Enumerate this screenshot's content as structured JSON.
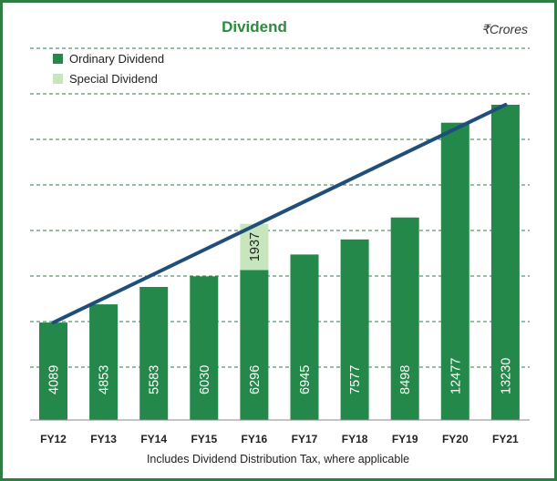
{
  "chart_data": {
    "type": "bar",
    "title": "Dividend",
    "unit_label": "₹Crores",
    "footnote": "Includes Dividend Distribution Tax, where applicable",
    "categories": [
      "FY12",
      "FY13",
      "FY14",
      "FY15",
      "FY16",
      "FY17",
      "FY18",
      "FY19",
      "FY20",
      "FY21"
    ],
    "series": [
      {
        "name": "Ordinary Dividend",
        "values": [
          4089,
          4853,
          5583,
          6030,
          6296,
          6945,
          7577,
          8498,
          12477,
          13230
        ],
        "color": "#23884a"
      },
      {
        "name": "Special Dividend",
        "values": [
          0,
          0,
          0,
          0,
          1937,
          0,
          0,
          0,
          0,
          0
        ],
        "color": "#c7e6be"
      }
    ],
    "stacked": true,
    "trend_line": {
      "color": "#1f4e79",
      "from_category": "FY12",
      "to_category": "FY21"
    },
    "ylim": [
      0,
      14500
    ],
    "grid": "dashed-horizontal",
    "legend_position": "top-left",
    "value_label_color": "#ffffff",
    "special_label_color": "#222222",
    "title_color": "#2e8a3e"
  }
}
